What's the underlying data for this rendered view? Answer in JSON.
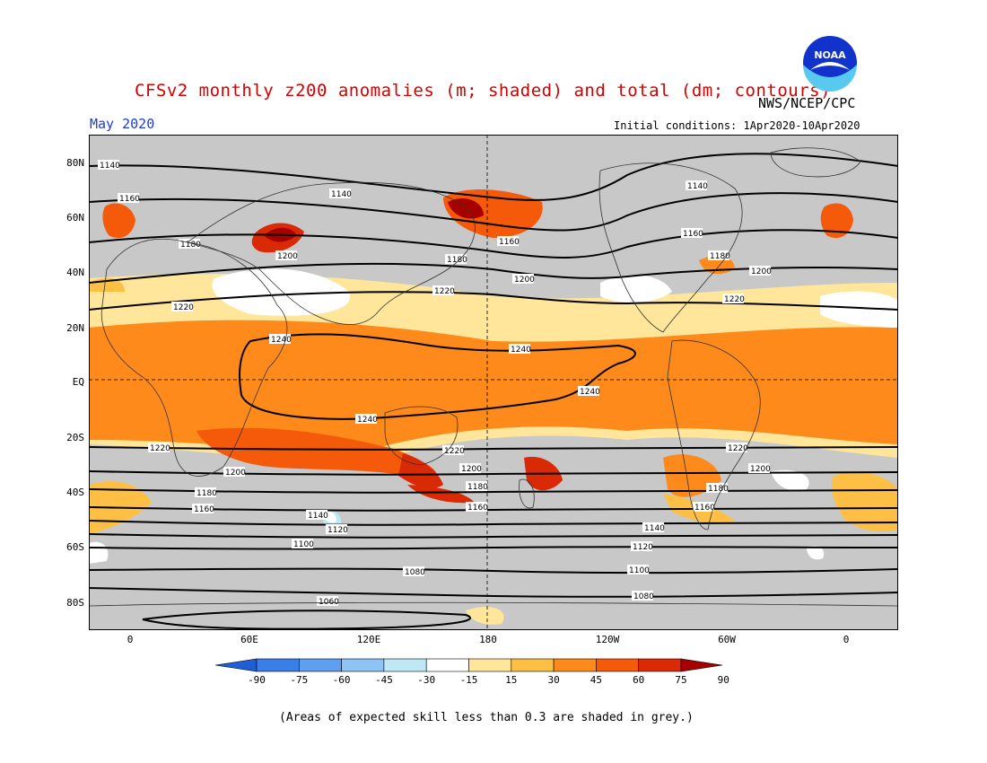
{
  "title": "CFSv2 monthly z200 anomalies (m; shaded) and total (dm; contours)",
  "agency": "NWS/NCEP/CPC",
  "logo_text": "NOAA",
  "valid_month": "May 2020",
  "initial_conditions": "Initial conditions: 1Apr2020-10Apr2020",
  "footnote": "(Areas of expected skill less than 0.3 are shaded in grey.)",
  "lat_ticks": [
    "80N",
    "60N",
    "40N",
    "20N",
    "EQ",
    "20S",
    "40S",
    "60S",
    "80S"
  ],
  "lon_ticks": [
    "0",
    "60E",
    "120E",
    "180",
    "120W",
    "60W",
    "0"
  ],
  "colorbar": {
    "labels": [
      "-90",
      "-75",
      "-60",
      "-45",
      "-30",
      "-15",
      "15",
      "30",
      "45",
      "60",
      "75",
      "90"
    ],
    "colors": [
      "#1f5fd6",
      "#3a7ee8",
      "#5e9ff0",
      "#8ec3f5",
      "#bfe8f5",
      "#ffffff",
      "#ffe69a",
      "#fec044",
      "#fd8a1a",
      "#f55a0a",
      "#d92a05",
      "#a60000"
    ]
  },
  "contour_labels": [
    "1140",
    "1160",
    "1180",
    "1200",
    "1220",
    "1240",
    "1080",
    "1100",
    "1120",
    "1060"
  ],
  "colors": {
    "skill_grey": "#c8c8c8",
    "title_red": "#d40000",
    "date_blue": "#1c3bd6"
  }
}
